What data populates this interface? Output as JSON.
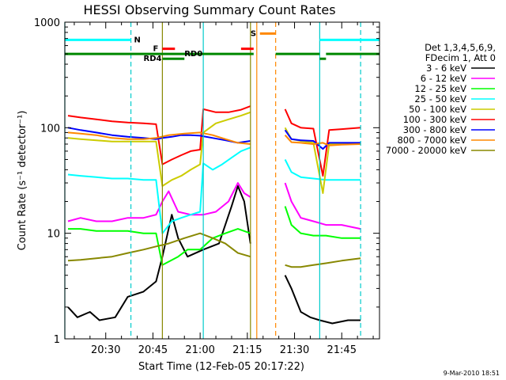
{
  "chart_data": {
    "type": "line",
    "title": "HESSI Observing Summary Count Rates",
    "xlabel": "Start Time (12-Feb-05 20:17:22)",
    "ylabel": "Count Rate (s⁻¹ detector⁻¹)",
    "y_scale": "log",
    "ylim": [
      1,
      1000
    ],
    "y_ticks": [
      "1",
      "10",
      "100",
      "1000"
    ],
    "x_range_minutes": [
      "20:17",
      "21:57"
    ],
    "x_ticks": [
      "20:30",
      "20:45",
      "21:00",
      "21:15",
      "21:30",
      "21:45"
    ],
    "legend_header": [
      "Det 1,3,4,5,6,9,",
      "FDecim 1, Att 0"
    ],
    "legend_placement": "right",
    "series": [
      {
        "name": "3 - 6 keV",
        "color": "#000000",
        "points": [
          [
            "20:18",
            2
          ],
          [
            "20:21",
            1.6
          ],
          [
            "20:25",
            1.8
          ],
          [
            "20:28",
            1.5
          ],
          [
            "20:33",
            1.6
          ],
          [
            "20:37",
            2.5
          ],
          [
            "20:42",
            2.8
          ],
          [
            "20:46",
            3.5
          ],
          [
            "20:48",
            6
          ],
          [
            "20:51",
            15
          ],
          [
            "20:53",
            9
          ],
          [
            "20:56",
            6
          ],
          [
            "21:01",
            7
          ],
          [
            "21:06",
            8
          ],
          [
            "21:10",
            18
          ],
          [
            "21:12",
            28
          ],
          [
            "21:14",
            20
          ],
          [
            "21:16",
            8
          ]
        ],
        "points2": [
          [
            "21:27",
            4
          ],
          [
            "21:29",
            3
          ],
          [
            "21:32",
            1.8
          ],
          [
            "21:35",
            1.6
          ],
          [
            "21:38",
            1.5
          ],
          [
            "21:42",
            1.4
          ],
          [
            "21:47",
            1.5
          ],
          [
            "21:51",
            1.5
          ]
        ]
      },
      {
        "name": "6 - 12 keV",
        "color": "#ff00ff",
        "points": [
          [
            "20:18",
            13
          ],
          [
            "20:22",
            14
          ],
          [
            "20:27",
            13
          ],
          [
            "20:32",
            13
          ],
          [
            "20:37",
            14
          ],
          [
            "20:42",
            14
          ],
          [
            "20:46",
            15
          ],
          [
            "20:48",
            20
          ],
          [
            "20:50",
            25
          ],
          [
            "20:53",
            16
          ],
          [
            "20:57",
            15
          ],
          [
            "21:01",
            15
          ],
          [
            "21:05",
            16
          ],
          [
            "21:09",
            20
          ],
          [
            "21:12",
            30
          ],
          [
            "21:14",
            24
          ],
          [
            "21:16",
            22
          ]
        ],
        "points2": [
          [
            "21:27",
            30
          ],
          [
            "21:29",
            20
          ],
          [
            "21:32",
            14
          ],
          [
            "21:36",
            13
          ],
          [
            "21:40",
            12
          ],
          [
            "21:45",
            12
          ],
          [
            "21:51",
            11
          ]
        ]
      },
      {
        "name": "12 - 25 keV",
        "color": "#00ff00",
        "points": [
          [
            "20:18",
            11
          ],
          [
            "20:22",
            11
          ],
          [
            "20:27",
            10.5
          ],
          [
            "20:32",
            10.5
          ],
          [
            "20:37",
            10.5
          ],
          [
            "20:42",
            10
          ],
          [
            "20:46",
            10
          ],
          [
            "20:48",
            5
          ],
          [
            "20:53",
            6
          ],
          [
            "20:56",
            7
          ],
          [
            "21:00",
            7
          ],
          [
            "21:04",
            9
          ],
          [
            "21:08",
            10
          ],
          [
            "21:12",
            11
          ],
          [
            "21:16",
            10
          ]
        ],
        "points2": [
          [
            "21:27",
            18
          ],
          [
            "21:29",
            12
          ],
          [
            "21:32",
            10
          ],
          [
            "21:36",
            9.5
          ],
          [
            "21:40",
            9.5
          ],
          [
            "21:45",
            9
          ],
          [
            "21:51",
            9
          ]
        ]
      },
      {
        "name": "25 - 50 keV",
        "color": "#00ffff",
        "points": [
          [
            "20:18",
            36
          ],
          [
            "20:22",
            35
          ],
          [
            "20:27",
            34
          ],
          [
            "20:32",
            33
          ],
          [
            "20:37",
            33
          ],
          [
            "20:42",
            32
          ],
          [
            "20:46",
            32
          ],
          [
            "20:48",
            10
          ],
          [
            "20:51",
            13
          ],
          [
            "20:54",
            14
          ],
          [
            "20:57",
            15
          ],
          [
            "21:00",
            16
          ],
          [
            "21:01",
            46
          ],
          [
            "21:04",
            40
          ],
          [
            "21:07",
            45
          ],
          [
            "21:10",
            52
          ],
          [
            "21:13",
            60
          ],
          [
            "21:16",
            65
          ]
        ],
        "points2": [
          [
            "21:27",
            50
          ],
          [
            "21:29",
            38
          ],
          [
            "21:32",
            34
          ],
          [
            "21:36",
            33
          ],
          [
            "21:40",
            32
          ],
          [
            "21:45",
            32
          ],
          [
            "21:51",
            32
          ]
        ]
      },
      {
        "name": "50 - 100 keV",
        "color": "#cccc00",
        "points": [
          [
            "20:18",
            80
          ],
          [
            "20:22",
            78
          ],
          [
            "20:27",
            76
          ],
          [
            "20:32",
            74
          ],
          [
            "20:37",
            74
          ],
          [
            "20:42",
            74
          ],
          [
            "20:46",
            74
          ],
          [
            "20:48",
            28
          ],
          [
            "20:51",
            32
          ],
          [
            "20:54",
            35
          ],
          [
            "20:57",
            40
          ],
          [
            "21:00",
            45
          ],
          [
            "21:01",
            90
          ],
          [
            "21:05",
            110
          ],
          [
            "21:09",
            120
          ],
          [
            "21:13",
            130
          ],
          [
            "21:16",
            140
          ]
        ],
        "points2": [
          [
            "21:27",
            100
          ],
          [
            "21:29",
            78
          ],
          [
            "21:32",
            75
          ],
          [
            "21:36",
            72
          ],
          [
            "21:39",
            24
          ],
          [
            "21:41",
            70
          ],
          [
            "21:45",
            70
          ],
          [
            "21:51",
            70
          ]
        ]
      },
      {
        "name": "100 - 300 keV",
        "color": "#ff0000",
        "points": [
          [
            "20:18",
            130
          ],
          [
            "20:22",
            125
          ],
          [
            "20:27",
            120
          ],
          [
            "20:32",
            115
          ],
          [
            "20:37",
            112
          ],
          [
            "20:42",
            110
          ],
          [
            "20:46",
            108
          ],
          [
            "20:48",
            45
          ],
          [
            "20:51",
            50
          ],
          [
            "20:54",
            55
          ],
          [
            "20:57",
            60
          ],
          [
            "21:00",
            62
          ],
          [
            "21:01",
            150
          ],
          [
            "21:05",
            140
          ],
          [
            "21:09",
            140
          ],
          [
            "21:13",
            148
          ],
          [
            "21:16",
            160
          ]
        ],
        "points2": [
          [
            "21:27",
            150
          ],
          [
            "21:29",
            110
          ],
          [
            "21:32",
            100
          ],
          [
            "21:36",
            98
          ],
          [
            "21:39",
            35
          ],
          [
            "21:41",
            95
          ],
          [
            "21:45",
            97
          ],
          [
            "21:51",
            100
          ]
        ]
      },
      {
        "name": "300 - 800 keV",
        "color": "#0000ff",
        "points": [
          [
            "20:18",
            100
          ],
          [
            "20:22",
            95
          ],
          [
            "20:27",
            90
          ],
          [
            "20:32",
            85
          ],
          [
            "20:37",
            82
          ],
          [
            "20:42",
            80
          ],
          [
            "20:46",
            78
          ],
          [
            "20:48",
            80
          ],
          [
            "20:51",
            82
          ],
          [
            "20:54",
            85
          ],
          [
            "20:57",
            85
          ],
          [
            "21:00",
            84
          ],
          [
            "21:04",
            80
          ],
          [
            "21:08",
            76
          ],
          [
            "21:12",
            72
          ],
          [
            "21:16",
            75
          ]
        ],
        "points2": [
          [
            "21:27",
            95
          ],
          [
            "21:29",
            78
          ],
          [
            "21:32",
            76
          ],
          [
            "21:36",
            75
          ],
          [
            "21:39",
            63
          ],
          [
            "21:41",
            72
          ],
          [
            "21:45",
            72
          ],
          [
            "21:51",
            72
          ]
        ]
      },
      {
        "name": "800 - 7000 keV",
        "color": "#ff8800",
        "points": [
          [
            "20:18",
            90
          ],
          [
            "20:22",
            88
          ],
          [
            "20:27",
            85
          ],
          [
            "20:32",
            80
          ],
          [
            "20:37",
            78
          ],
          [
            "20:42",
            78
          ],
          [
            "20:46",
            80
          ],
          [
            "20:50",
            85
          ],
          [
            "20:55",
            88
          ],
          [
            "21:00",
            90
          ],
          [
            "21:04",
            85
          ],
          [
            "21:08",
            78
          ],
          [
            "21:12",
            72
          ],
          [
            "21:16",
            70
          ]
        ],
        "points2": [
          [
            "21:27",
            85
          ],
          [
            "21:29",
            73
          ],
          [
            "21:32",
            72
          ],
          [
            "21:36",
            70
          ],
          [
            "21:39",
            72
          ],
          [
            "21:41",
            68
          ],
          [
            "21:45",
            69
          ],
          [
            "21:51",
            70
          ]
        ]
      },
      {
        "name": "7000 - 20000 keV",
        "color": "#888800",
        "points": [
          [
            "20:18",
            5.5
          ],
          [
            "20:22",
            5.6
          ],
          [
            "20:27",
            5.8
          ],
          [
            "20:32",
            6
          ],
          [
            "20:37",
            6.5
          ],
          [
            "20:42",
            7
          ],
          [
            "20:46",
            7.5
          ],
          [
            "20:50",
            8
          ],
          [
            "20:55",
            9
          ],
          [
            "21:00",
            10
          ],
          [
            "21:04",
            9
          ],
          [
            "21:08",
            8
          ],
          [
            "21:12",
            6.5
          ],
          [
            "21:16",
            6
          ]
        ],
        "points2": [
          [
            "21:27",
            5
          ],
          [
            "21:29",
            4.8
          ],
          [
            "21:32",
            4.8
          ],
          [
            "21:36",
            5
          ],
          [
            "21:40",
            5.2
          ],
          [
            "21:45",
            5.5
          ],
          [
            "21:51",
            5.8
          ]
        ]
      }
    ],
    "vertical_markers": [
      {
        "time": "20:17",
        "color": "#00cccc",
        "style": "solid"
      },
      {
        "time": "20:38",
        "color": "#00cccc",
        "style": "dashed"
      },
      {
        "time": "20:48",
        "color": "#888800",
        "style": "solid"
      },
      {
        "time": "21:01",
        "color": "#00cccc",
        "style": "solid"
      },
      {
        "time": "21:16",
        "color": "#888800",
        "style": "solid"
      },
      {
        "time": "21:18",
        "color": "#ff8800",
        "style": "solid"
      },
      {
        "time": "21:24",
        "color": "#ff8800",
        "style": "dashed"
      },
      {
        "time": "21:38",
        "color": "#00cccc",
        "style": "solid"
      },
      {
        "time": "21:51",
        "color": "#00cccc",
        "style": "dashed"
      }
    ],
    "flag_bars": [
      {
        "label": "N",
        "color": "#00ffff",
        "y_value": 680,
        "segments": [
          [
            "20:17",
            "20:38"
          ],
          [
            "21:38",
            "21:57"
          ]
        ],
        "label_time": "20:39"
      },
      {
        "label": "S",
        "color": "#ff8800",
        "y_value": 780,
        "segments": [
          [
            "21:19",
            "21:24"
          ]
        ],
        "label_time": "21:16"
      },
      {
        "label": "F",
        "color": "#ff0000",
        "y_value": 560,
        "segments": [
          [
            "20:48",
            "20:52"
          ],
          [
            "21:13",
            "21:17"
          ]
        ],
        "label_time": "20:45"
      },
      {
        "label": "RD0",
        "color": "#008800",
        "y_value": 500,
        "segments": [
          [
            "20:17",
            "21:17"
          ],
          [
            "21:24",
            "21:38"
          ],
          [
            "21:40",
            "21:57"
          ]
        ],
        "label_time": "20:55"
      },
      {
        "label": "RD4",
        "color": "#008800",
        "y_value": 450,
        "segments": [
          [
            "20:48",
            "20:55"
          ],
          [
            "21:38",
            "21:40"
          ]
        ],
        "label_time": "20:42"
      }
    ]
  },
  "footer": {
    "timestamp": "9-Mar-2010 18:51"
  }
}
